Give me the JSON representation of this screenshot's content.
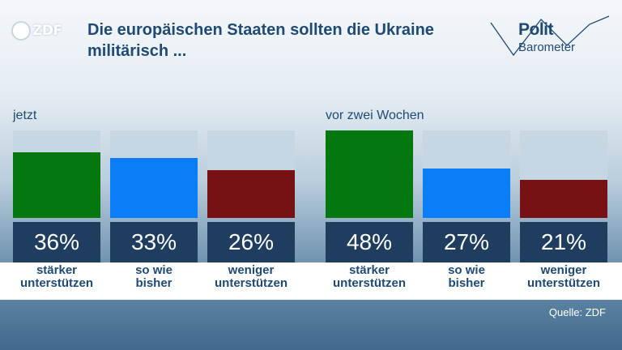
{
  "header": {
    "logo_text": "ZDF",
    "title": "Die europäischen Staaten sollten die Ukraine militärisch ...",
    "brand_line1": "Polit",
    "brand_line2": "Barometer"
  },
  "colors": {
    "green": "#04780f",
    "blue": "#0a7ef7",
    "red": "#761114",
    "bar_bg": "#c6d6e3",
    "value_box": "#1f3e5f",
    "title": "#1f4a73"
  },
  "chart_data": [
    {
      "type": "bar",
      "title": "jetzt",
      "categories": [
        "stärker unterstützen",
        "so wie bisher",
        "weniger unterstützen"
      ],
      "category_lines": [
        [
          "stärker",
          "unterstützen"
        ],
        [
          "so wie",
          "bisher"
        ],
        [
          "weniger",
          "unterstützen"
        ]
      ],
      "values": [
        36,
        33,
        26
      ],
      "value_labels": [
        "36%",
        "33%",
        "26%"
      ],
      "colors": [
        "#04780f",
        "#0a7ef7",
        "#761114"
      ],
      "ylim": [
        0,
        48
      ]
    },
    {
      "type": "bar",
      "title": "vor zwei Wochen",
      "categories": [
        "stärker unterstützen",
        "so wie bisher",
        "weniger unterstützen"
      ],
      "category_lines": [
        [
          "stärker",
          "unterstützen"
        ],
        [
          "so wie",
          "bisher"
        ],
        [
          "weniger",
          "unterstützen"
        ]
      ],
      "values": [
        48,
        27,
        21
      ],
      "value_labels": [
        "48%",
        "27%",
        "21%"
      ],
      "colors": [
        "#04780f",
        "#0a7ef7",
        "#761114"
      ],
      "ylim": [
        0,
        48
      ]
    }
  ],
  "footer": {
    "source": "Quelle: ZDF"
  }
}
